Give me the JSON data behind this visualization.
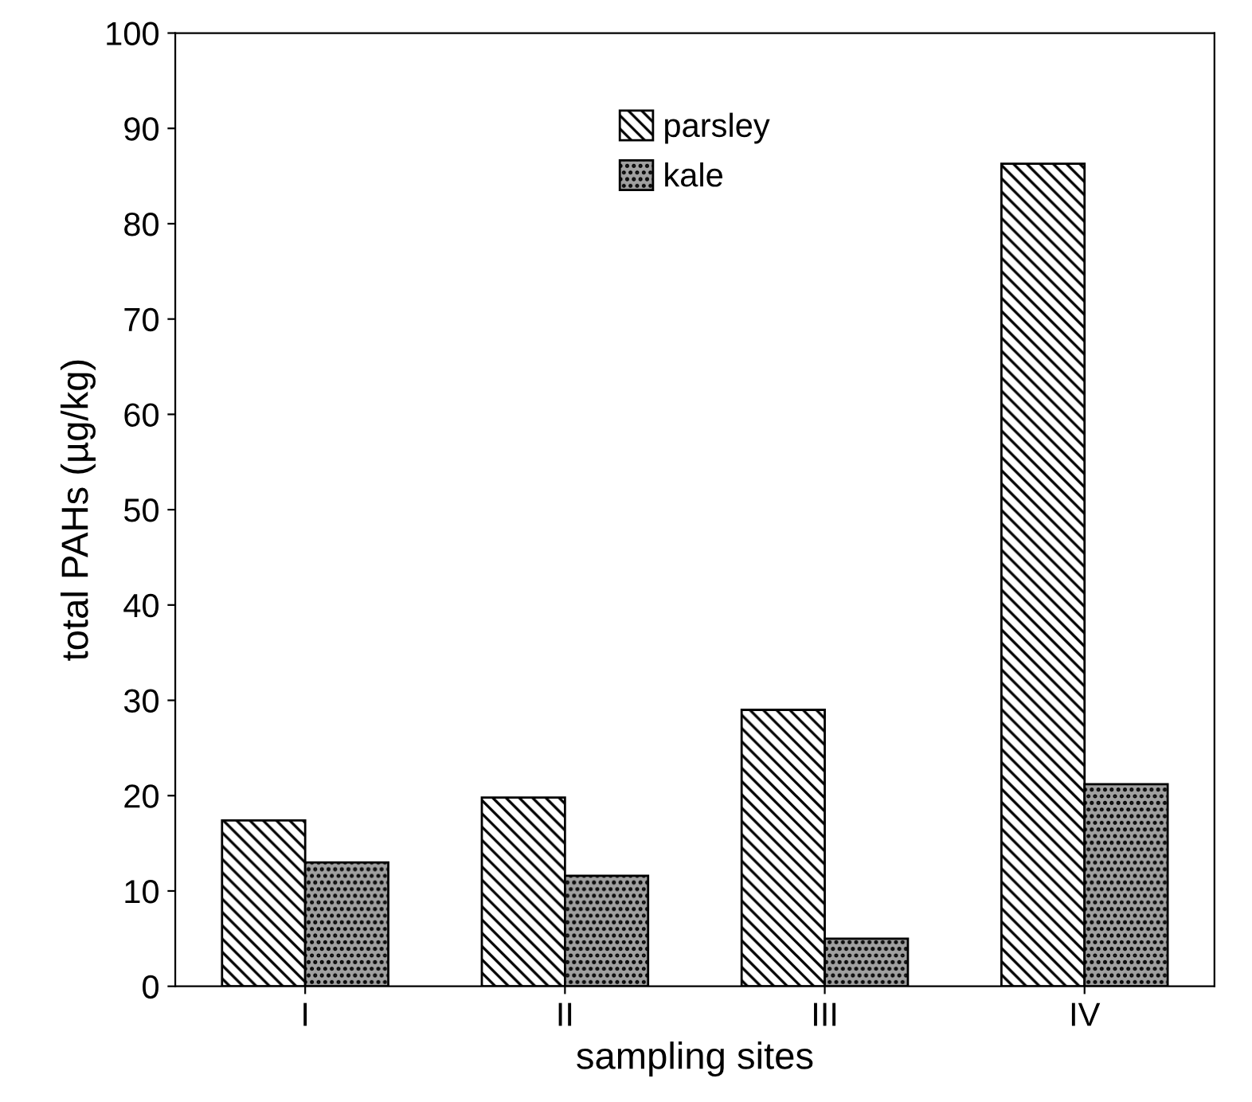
{
  "chart_data": {
    "type": "bar",
    "xlabel": "sampling sites",
    "ylabel": "total PAHs (µg/kg)",
    "categories": [
      "I",
      "II",
      "III",
      "IV"
    ],
    "series": [
      {
        "name": "parsley",
        "color": "#000000",
        "values": [
          17.4,
          19.8,
          29.0,
          86.3
        ]
      },
      {
        "name": "kale",
        "color": "#000000",
        "values": [
          13.0,
          11.6,
          5.0,
          21.2
        ]
      }
    ],
    "ylim": [
      0,
      100
    ],
    "yticks": [
      0,
      10,
      20,
      30,
      40,
      50,
      60,
      70,
      80,
      90,
      100
    ],
    "grid": false,
    "legend": "top"
  }
}
